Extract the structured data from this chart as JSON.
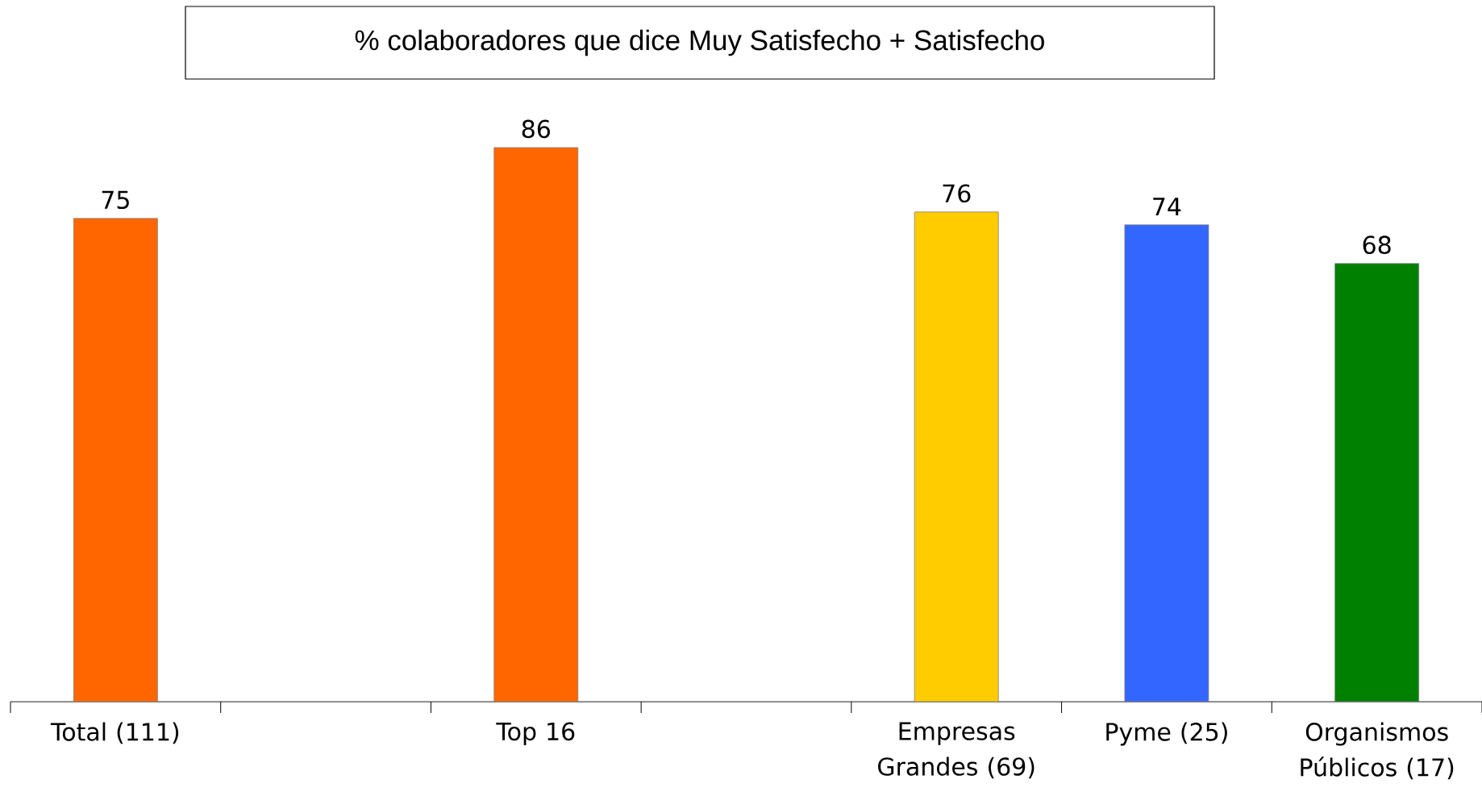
{
  "chart_data": {
    "type": "bar",
    "title": "% colaboradores que dice Muy Satisfecho + Satisfecho",
    "categories": [
      "Total (111)",
      null,
      "Top 16",
      null,
      "Empresas Grandes (69)",
      "Pyme (25)",
      "Organismos Públicos (17)"
    ],
    "values": [
      75,
      null,
      86,
      null,
      76,
      74,
      68
    ],
    "colors": [
      "#ff6600",
      null,
      "#ff6600",
      null,
      "#ffcc00",
      "#3366ff",
      "#008000"
    ],
    "data_labels": true
  }
}
